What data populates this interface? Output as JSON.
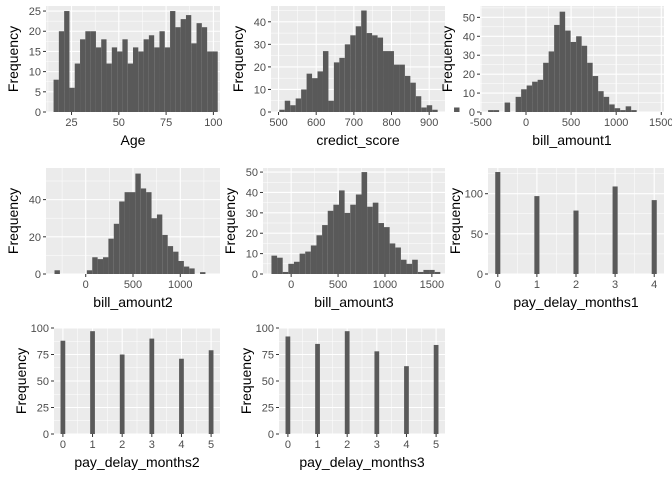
{
  "colors": {
    "panel_bg": "#ebebeb",
    "grid_major": "#ffffff",
    "bar_fill": "#595959",
    "tick_text": "#4d4d4d",
    "axis_text": "#000000"
  },
  "chart_data": [
    {
      "type": "bar",
      "xlabel": "Age",
      "ylabel": "Frequency",
      "grid": true,
      "xlim": [
        11.5,
        103.5
      ],
      "ylim": [
        0,
        26.25
      ],
      "xticks": [
        25,
        50,
        75,
        100
      ],
      "xtick_labels": [
        "25",
        "50",
        "75",
        "100"
      ],
      "yticks": [
        0,
        5,
        10,
        15,
        20,
        25
      ],
      "ytick_labels": [
        "0",
        "5",
        "10",
        "15",
        "20",
        "25"
      ],
      "bin_start": 15.5,
      "bin_width": 2.8,
      "values": [
        8,
        20,
        25,
        6,
        12,
        18,
        20,
        20,
        16,
        18,
        12,
        16,
        15,
        18,
        12,
        16,
        15,
        18,
        19,
        16,
        20,
        16,
        25,
        21,
        23,
        24,
        17,
        22,
        21,
        15,
        15
      ]
    },
    {
      "type": "bar",
      "xlabel": "credict_score",
      "ylabel": "Frequency",
      "grid": true,
      "xlim": [
        480,
        942
      ],
      "ylim": [
        0,
        47
      ],
      "xticks": [
        500,
        600,
        700,
        800,
        900
      ],
      "xtick_labels": [
        "500",
        "600",
        "700",
        "800",
        "900"
      ],
      "yticks": [
        0,
        10,
        20,
        30,
        40
      ],
      "ytick_labels": [
        "0",
        "10",
        "20",
        "30",
        "40"
      ],
      "bin_start": 502,
      "bin_width": 14.5,
      "values": [
        1,
        5,
        3,
        6,
        10,
        17,
        15,
        18,
        27,
        5,
        22,
        24,
        30,
        34,
        38,
        45,
        35,
        34,
        33,
        27,
        27,
        21,
        21,
        16,
        13,
        7,
        2,
        3,
        1,
        0,
        0,
        0,
        2
      ]
    },
    {
      "type": "bar",
      "xlabel": "bill_amount1",
      "ylabel": "Frequency",
      "grid": true,
      "xlim": [
        -510,
        1530
      ],
      "ylim": [
        0,
        56
      ],
      "xticks": [
        -500,
        0,
        500,
        1000,
        1500
      ],
      "xtick_labels": [
        "-500",
        "0",
        "500",
        "1000",
        "1500"
      ],
      "yticks": [
        0,
        10,
        20,
        30,
        40,
        50
      ],
      "ytick_labels": [
        "0",
        "10",
        "20",
        "30",
        "40",
        "50"
      ],
      "bin_start": -420,
      "bin_width": 61,
      "values": [
        1,
        1,
        0,
        5,
        0,
        8,
        12,
        14,
        16,
        17,
        26,
        32,
        46,
        53,
        43,
        37,
        40,
        35,
        26,
        19,
        11,
        8,
        4,
        2,
        1,
        3,
        1
      ]
    },
    {
      "type": "bar",
      "xlabel": "bill_amount2",
      "ylabel": "Frequency",
      "grid": true,
      "xlim": [
        -420,
        1420
      ],
      "ylim": [
        0,
        57
      ],
      "xticks": [
        0,
        500,
        1000
      ],
      "xtick_labels": [
        "0",
        "500",
        "1000"
      ],
      "yticks": [
        0,
        20,
        40
      ],
      "ytick_labels": [
        "0",
        "20",
        "40"
      ],
      "bin_start": -330,
      "bin_width": 57,
      "values": [
        2,
        0,
        0,
        0,
        0,
        0,
        2,
        9,
        8,
        9,
        19,
        27,
        39,
        44,
        44,
        54,
        46,
        44,
        30,
        32,
        21,
        15,
        12,
        7,
        4,
        3,
        0,
        1
      ]
    },
    {
      "type": "bar",
      "xlabel": "bill_amount3",
      "ylabel": "Frequency",
      "grid": true,
      "xlim": [
        -300,
        1640
      ],
      "ylim": [
        0,
        52
      ],
      "xticks": [
        0,
        500,
        1000,
        1500
      ],
      "xtick_labels": [
        "0",
        "500",
        "1000",
        "1500"
      ],
      "yticks": [
        0,
        10,
        20,
        30,
        40,
        50
      ],
      "ytick_labels": [
        "0",
        "10",
        "20",
        "30",
        "40",
        "50"
      ],
      "bin_start": -210,
      "bin_width": 60,
      "values": [
        9,
        8,
        1,
        5,
        6,
        10,
        11,
        14,
        19,
        24,
        31,
        34,
        41,
        30,
        34,
        39,
        50,
        33,
        35,
        25,
        23,
        15,
        13,
        7,
        5,
        7,
        1,
        2,
        2,
        1
      ]
    },
    {
      "type": "bar",
      "xlabel": "pay_delay_months1",
      "ylabel": "Frequency",
      "grid": true,
      "xlim": [
        -0.25,
        4.25
      ],
      "ylim": [
        0,
        132
      ],
      "xticks": [
        0,
        1,
        2,
        3,
        4
      ],
      "xtick_labels": [
        "0",
        "1",
        "2",
        "3",
        "4"
      ],
      "yticks": [
        0,
        50,
        100
      ],
      "ytick_labels": [
        "0",
        "50",
        "100"
      ],
      "categories": [
        0,
        1,
        2,
        3,
        4
      ],
      "bar_width": 0.13,
      "values": [
        127,
        97,
        79,
        109,
        92
      ]
    },
    {
      "type": "bar",
      "xlabel": "pay_delay_months2",
      "ylabel": "Frequency",
      "grid": true,
      "xlim": [
        -0.3,
        5.3
      ],
      "ylim": [
        0,
        100
      ],
      "xticks": [
        0,
        1,
        2,
        3,
        4,
        5
      ],
      "xtick_labels": [
        "0",
        "1",
        "2",
        "3",
        "4",
        "5"
      ],
      "yticks": [
        0,
        25,
        50,
        75,
        100
      ],
      "ytick_labels": [
        "0",
        "25",
        "50",
        "75",
        "100"
      ],
      "categories": [
        0,
        1,
        2,
        3,
        4,
        5
      ],
      "bar_width": 0.16,
      "values": [
        88,
        97,
        75,
        90,
        71,
        79
      ]
    },
    {
      "type": "bar",
      "xlabel": "pay_delay_months3",
      "ylabel": "Frequency",
      "grid": true,
      "xlim": [
        -0.3,
        5.3
      ],
      "ylim": [
        0,
        100
      ],
      "xticks": [
        0,
        1,
        2,
        3,
        4,
        5
      ],
      "xtick_labels": [
        "0",
        "1",
        "2",
        "3",
        "4",
        "5"
      ],
      "yticks": [
        0,
        25,
        50,
        75,
        100
      ],
      "ytick_labels": [
        "0",
        "25",
        "50",
        "75",
        "100"
      ],
      "categories": [
        0,
        1,
        2,
        3,
        4,
        5
      ],
      "bar_width": 0.16,
      "values": [
        92,
        85,
        97,
        78,
        64,
        84
      ]
    }
  ]
}
